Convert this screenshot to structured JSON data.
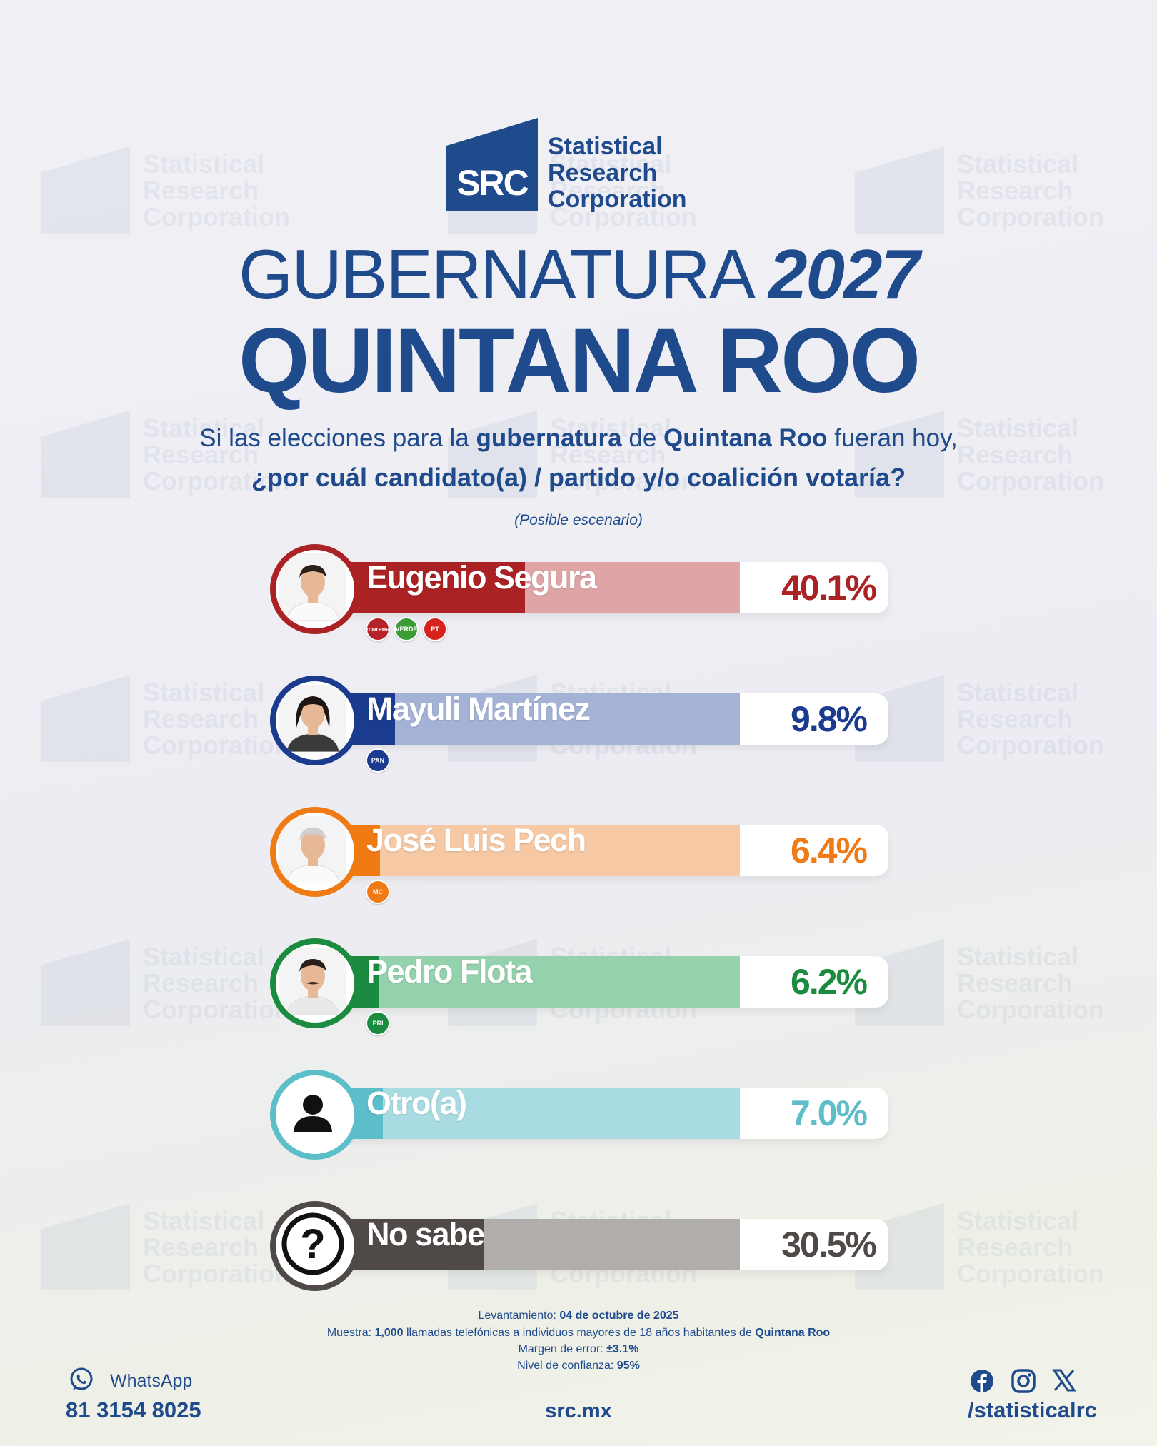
{
  "brand": {
    "mark": "SRC",
    "line1": "Statistical",
    "line2": "Research",
    "line3": "Corporation"
  },
  "title": {
    "line1_light": "GUBERNATURA",
    "line1_year": "2027",
    "line2": "QUINTANA ROO"
  },
  "question": {
    "p1": "Si las elecciones para la ",
    "b1": "gubernatura",
    "p2": " de ",
    "b2": "Quintana Roo",
    "p3": " fueran hoy,",
    "line2": "¿por cuál candidato(a) / partido y/o coalición votaría?",
    "scenario": "(Posible escenario)"
  },
  "chart_data": {
    "type": "bar",
    "categories": [
      "Eugenio Segura",
      "Mayuli Martínez",
      "José Luis Pech",
      "Pedro Flota",
      "Otro(a)",
      "No sabe"
    ],
    "values": [
      40.1,
      9.8,
      6.4,
      6.2,
      7.0,
      30.5
    ],
    "value_labels": [
      "40.1%",
      "9.8%",
      "6.4%",
      "6.2%",
      "7.0%",
      "30.5%"
    ],
    "colors": [
      "#ab2224",
      "#1b3b8f",
      "#f07a13",
      "#1b8c3f",
      "#5bbec9",
      "#4f4a48"
    ],
    "light_colors": [
      "#dea4a6",
      "#a4b2d6",
      "#f6c9a4",
      "#94d1ad",
      "#a9dbe2",
      "#b1adab"
    ],
    "xlim": [
      0,
      100
    ],
    "parties": [
      [
        "morena",
        "VERDE",
        "PT"
      ],
      [
        "PAN"
      ],
      [
        "MC"
      ],
      [
        "PRI"
      ],
      [],
      []
    ]
  },
  "footer": {
    "date_label": "Levantamiento: ",
    "date": "04 de octubre de 2025",
    "sample_label": "Muestra: ",
    "sample_n": "1,000",
    "sample_mid": " llamadas telefónicas a individuos mayores de 18 años habitantes de ",
    "sample_place": "Quintana Roo",
    "error_label": "Margen de error: ",
    "error": "±3.1%",
    "conf_label": "Nivel de confianza: ",
    "conf": "95%"
  },
  "contact": {
    "whatsapp_label": "WhatsApp",
    "phone": "81 3154 8025",
    "site": "src.mx",
    "handle": "/statisticalrc",
    "icons": [
      "whatsapp-icon",
      "facebook-icon",
      "instagram-icon",
      "x-icon"
    ]
  }
}
